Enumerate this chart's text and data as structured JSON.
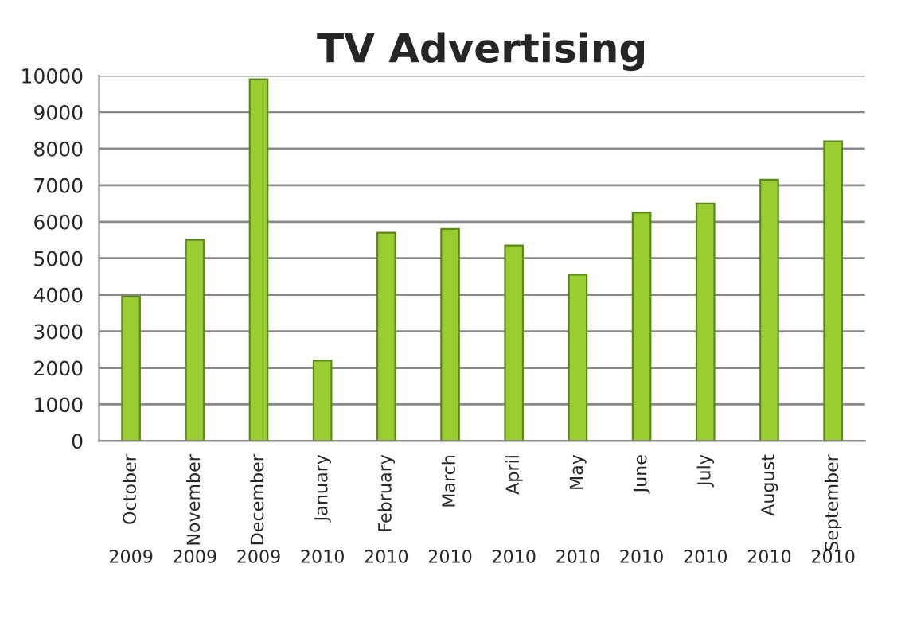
{
  "chart_data": {
    "type": "bar",
    "title": "TV Advertising",
    "categories": [
      "October\n2009",
      "November\n2009",
      "December\n2009",
      "January\n2010",
      "February\n2010",
      "March\n2010",
      "April\n2010",
      "May\n2010",
      "June\n2010",
      "July\n2010",
      "August\n2010",
      "September\n2010"
    ],
    "values": [
      3950,
      5500,
      9900,
      2200,
      5700,
      5800,
      5350,
      4550,
      6250,
      6500,
      7150,
      8200
    ],
    "color": "#9acd32",
    "ylim": [
      0,
      10000
    ],
    "yticks": [
      0,
      1000,
      2000,
      3000,
      4000,
      5000,
      6000,
      7000,
      8000,
      9000,
      10000
    ],
    "grid": "y"
  }
}
